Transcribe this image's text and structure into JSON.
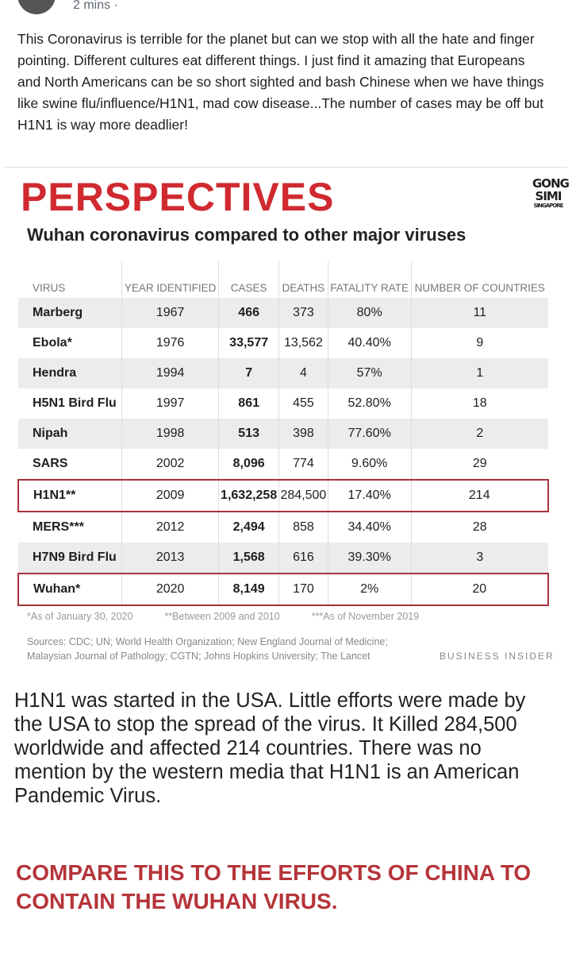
{
  "post": {
    "time": "2 mins ·",
    "text": "This Coronavirus is terrible for the planet but can we stop with all the hate and finger pointing. Different cultures eat different things. I just find it amazing that Europeans and North Americans can be so short sighted and bash Chinese when we have things like swine flu/influence/H1N1, mad cow disease...The number of cases may be off but H1N1 is way more deadlier!"
  },
  "image": {
    "title": "PERSPECTIVES",
    "logo": [
      "GONG",
      "SIMI",
      "SINGAPORE"
    ],
    "subtitle": "Wuhan coronavirus compared to other major viruses",
    "table": {
      "headers": [
        "VIRUS",
        "YEAR IDENTIFIED",
        "CASES",
        "DEATHS",
        "FATALITY RATE",
        "NUMBER OF COUNTRIES"
      ],
      "rows": [
        [
          "Marberg",
          "1967",
          "466",
          "373",
          "80%",
          "11"
        ],
        [
          "Ebola*",
          "1976",
          "33,577",
          "13,562",
          "40.40%",
          "9"
        ],
        [
          "Hendra",
          "1994",
          "7",
          "4",
          "57%",
          "1"
        ],
        [
          "H5N1 Bird Flu",
          "1997",
          "861",
          "455",
          "52.80%",
          "18"
        ],
        [
          "Nipah",
          "1998",
          "513",
          "398",
          "77.60%",
          "2"
        ],
        [
          "SARS",
          "2002",
          "8,096",
          "774",
          "9.60%",
          "29"
        ],
        [
          "H1N1**",
          "2009",
          "1,632,258",
          "284,500",
          "17.40%",
          "214"
        ],
        [
          "MERS***",
          "2012",
          "2,494",
          "858",
          "34.40%",
          "28"
        ],
        [
          "H7N9 Bird Flu",
          "2013",
          "1,568",
          "616",
          "39.30%",
          "3"
        ],
        [
          "Wuhan*",
          "2020",
          "8,149",
          "170",
          "2%",
          "20"
        ]
      ]
    },
    "footnotes": [
      "*As of January 30, 2020",
      "**Between 2009 and 2010",
      "***As of November 2019"
    ],
    "sources": "Sources: CDC; UN; World Health Organization; New England Journal of Medicine; Malaysian Journal of Pathology; CGTN; Johns Hopkins University; The Lancet",
    "credit": "BUSINESS INSIDER",
    "caption": "H1N1 was started in the USA. Little efforts were made by the USA to stop the spread of the virus. It Killed 284,500 worldwide and affected 214 countries. There was no mention by the western media that H1N1 is an American Pandemic Virus.",
    "callout": "COMPARE THIS TO THE EFFORTS OF CHINA TO CONTAIN THE WUHAN VIRUS."
  }
}
